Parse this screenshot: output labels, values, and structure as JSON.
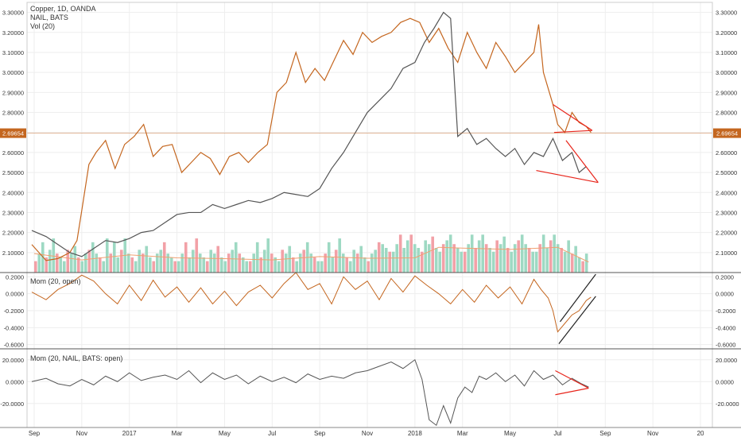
{
  "legend": {
    "symbol_line": "Copper, 1D, OANDA",
    "compare_line": "NAIL, BATS",
    "volume_line": "Vol (20)"
  },
  "colors": {
    "copper": "#c4661f",
    "nail": "#555555",
    "volume_up": "#9ed9c3",
    "volume_down": "#f2a1a7",
    "volume_ma": "#f0a070",
    "trendline": "#e8251b",
    "channel": "#222222",
    "price_label_bg": "#c4661f",
    "grid": "#eeeeee",
    "axis_text": "#333333"
  },
  "chart_data": [
    {
      "type": "line",
      "pane": "main",
      "y_axis": {
        "range": [
          2.0,
          3.35
        ],
        "ticks": [
          "3.30000",
          "3.20000",
          "3.10000",
          "3.00000",
          "2.90000",
          "2.80000",
          "2.70000",
          "2.60000",
          "2.50000",
          "2.40000",
          "2.30000",
          "2.20000",
          "2.10000"
        ],
        "tick_values": [
          3.3,
          3.2,
          3.1,
          3.0,
          2.9,
          2.8,
          2.7,
          2.6,
          2.5,
          2.4,
          2.3,
          2.2,
          2.1
        ]
      },
      "x_axis": {
        "ticks": [
          "Sep",
          "Nov",
          "2017",
          "Mar",
          "May",
          "Jul",
          "Sep",
          "Nov",
          "2018",
          "Mar",
          "May",
          "Jul",
          "Sep",
          "Nov",
          "20"
        ],
        "tick_month_index": [
          0,
          2,
          4,
          6,
          8,
          10,
          12,
          14,
          16,
          18,
          20,
          22,
          24,
          26,
          28
        ],
        "month_range": [
          -0.3,
          28.5
        ]
      },
      "current_price_label": "2.69654",
      "current_price": 2.69654,
      "series": [
        {
          "key": "copper",
          "x_month": [
            -0.1,
            0.5,
            1.0,
            1.5,
            1.8,
            2.0,
            2.3,
            2.6,
            3.0,
            3.4,
            3.8,
            4.2,
            4.6,
            5.0,
            5.4,
            5.8,
            6.2,
            6.6,
            7.0,
            7.4,
            7.8,
            8.2,
            8.6,
            9.0,
            9.4,
            9.8,
            10.2,
            10.6,
            11.0,
            11.4,
            11.8,
            12.2,
            12.6,
            13.0,
            13.4,
            13.8,
            14.2,
            14.6,
            15.0,
            15.4,
            15.8,
            16.2,
            16.6,
            17.0,
            17.4,
            17.8,
            18.2,
            18.6,
            19.0,
            19.4,
            19.8,
            20.2,
            20.6,
            21.0,
            21.2,
            21.4,
            21.6,
            21.8,
            22.0,
            22.3,
            22.6,
            22.9,
            23.2,
            23.4
          ],
          "values": [
            2.14,
            2.06,
            2.07,
            2.1,
            2.16,
            2.31,
            2.54,
            2.6,
            2.66,
            2.52,
            2.64,
            2.68,
            2.74,
            2.58,
            2.63,
            2.64,
            2.5,
            2.55,
            2.6,
            2.57,
            2.49,
            2.58,
            2.6,
            2.55,
            2.6,
            2.64,
            2.9,
            2.95,
            3.1,
            2.95,
            3.02,
            2.96,
            3.06,
            3.16,
            3.09,
            3.2,
            3.15,
            3.18,
            3.2,
            3.25,
            3.27,
            3.25,
            3.15,
            3.22,
            3.12,
            3.05,
            3.2,
            3.1,
            3.02,
            3.15,
            3.08,
            3.0,
            3.05,
            3.1,
            3.24,
            3.0,
            2.92,
            2.84,
            2.74,
            2.7,
            2.8,
            2.75,
            2.73,
            2.7
          ]
        },
        {
          "key": "nail",
          "x_month": [
            -0.1,
            0.5,
            1.0,
            1.5,
            2.0,
            2.5,
            3.0,
            3.5,
            4.0,
            4.5,
            5.0,
            5.5,
            6.0,
            6.5,
            7.0,
            7.5,
            8.0,
            8.5,
            9.0,
            9.5,
            10.0,
            10.5,
            11.0,
            11.5,
            12.0,
            12.5,
            13.0,
            13.5,
            14.0,
            14.5,
            15.0,
            15.5,
            16.0,
            16.4,
            16.8,
            17.2,
            17.5,
            17.8,
            18.2,
            18.6,
            19.0,
            19.4,
            19.8,
            20.2,
            20.6,
            21.0,
            21.4,
            21.8,
            22.2,
            22.6,
            22.9,
            23.2
          ],
          "values": [
            2.21,
            2.18,
            2.14,
            2.1,
            2.08,
            2.12,
            2.16,
            2.15,
            2.17,
            2.2,
            2.21,
            2.25,
            2.29,
            2.3,
            2.3,
            2.34,
            2.32,
            2.34,
            2.36,
            2.35,
            2.37,
            2.4,
            2.39,
            2.38,
            2.42,
            2.52,
            2.6,
            2.7,
            2.8,
            2.86,
            2.92,
            3.02,
            3.05,
            3.15,
            3.22,
            3.3,
            3.27,
            2.68,
            2.72,
            2.64,
            2.67,
            2.62,
            2.58,
            2.62,
            2.54,
            2.6,
            2.58,
            2.67,
            2.56,
            2.6,
            2.5,
            2.53
          ]
        }
      ],
      "trendlines": [
        {
          "key": "copper_triangle_upper",
          "x_month": [
            21.8,
            23.45
          ],
          "values": [
            2.84,
            2.71
          ]
        },
        {
          "key": "copper_triangle_lower",
          "x_month": [
            21.85,
            23.45
          ],
          "values": [
            2.7,
            2.71
          ]
        },
        {
          "key": "nail_triangle_upper",
          "x_month": [
            22.35,
            23.7
          ],
          "values": [
            2.66,
            2.45
          ]
        },
        {
          "key": "nail_triangle_lower",
          "x_month": [
            21.1,
            23.7
          ],
          "values": [
            2.51,
            2.45
          ]
        }
      ]
    },
    {
      "type": "bar",
      "pane": "volume",
      "series": [
        {
          "key": "volume",
          "x_month_range": [
            0.0,
            23.3
          ],
          "relative_height_pattern": [
            0.3,
            0.5,
            0.8,
            0.4,
            0.6,
            0.9,
            0.5,
            0.4,
            0.3,
            0.6,
            0.5,
            0.7,
            0.4,
            0.3,
            0.5,
            0.6,
            0.8,
            0.5,
            0.4,
            0.3
          ]
        },
        {
          "key": "volume_ma",
          "x_month": [
            0.0,
            2.0,
            4.0,
            6.0,
            8.0,
            10.0,
            12.0,
            14.0,
            16.0,
            17.0,
            18.0,
            20.0,
            22.0,
            23.3
          ],
          "relative_values": [
            0.45,
            0.3,
            0.42,
            0.35,
            0.33,
            0.3,
            0.38,
            0.34,
            0.35,
            0.6,
            0.58,
            0.55,
            0.6,
            0.25
          ]
        }
      ]
    },
    {
      "type": "line",
      "pane": "mom1",
      "title": "Mom (20, open)",
      "y_axis": {
        "range": [
          -0.65,
          0.25
        ],
        "ticks": [
          "0.2000",
          "0.0000",
          "-0.2000",
          "-0.4000",
          "-0.6000"
        ],
        "tick_values": [
          0.2,
          0.0,
          -0.2,
          -0.4,
          -0.6
        ]
      },
      "series": [
        {
          "key": "mom_copper",
          "x_month": [
            -0.1,
            0.5,
            1.0,
            1.5,
            2.0,
            2.5,
            3.0,
            3.5,
            4.0,
            4.5,
            5.0,
            5.5,
            6.0,
            6.5,
            7.0,
            7.5,
            8.0,
            8.5,
            9.0,
            9.5,
            10.0,
            10.5,
            11.0,
            11.5,
            12.0,
            12.5,
            13.0,
            13.5,
            14.0,
            14.5,
            15.0,
            15.5,
            16.0,
            16.5,
            17.0,
            17.5,
            18.0,
            18.5,
            19.0,
            19.5,
            20.0,
            20.5,
            21.0,
            21.3,
            21.6,
            21.8,
            22.0,
            22.3,
            22.6,
            22.9,
            23.2,
            23.4
          ],
          "values": [
            0.02,
            -0.07,
            0.05,
            0.12,
            0.22,
            0.15,
            0.0,
            -0.12,
            0.1,
            -0.08,
            0.16,
            -0.04,
            0.08,
            -0.1,
            0.07,
            -0.12,
            0.03,
            -0.14,
            0.02,
            0.1,
            -0.05,
            0.12,
            0.25,
            0.05,
            0.12,
            -0.12,
            0.2,
            0.05,
            0.15,
            -0.07,
            0.18,
            0.02,
            0.21,
            0.1,
            0.0,
            -0.12,
            0.05,
            -0.1,
            0.1,
            -0.05,
            0.08,
            -0.12,
            0.17,
            0.05,
            -0.05,
            -0.2,
            -0.45,
            -0.35,
            -0.25,
            -0.2,
            -0.08,
            -0.04
          ]
        }
      ],
      "trendlines": [
        {
          "key": "channel_upper",
          "x_month": [
            22.1,
            23.6
          ],
          "values": [
            -0.33,
            0.23
          ]
        },
        {
          "key": "channel_lower",
          "x_month": [
            22.05,
            23.6
          ],
          "values": [
            -0.59,
            -0.03
          ]
        }
      ]
    },
    {
      "type": "line",
      "pane": "mom2",
      "title": "Mom (20, NAIL, BATS: open)",
      "y_axis": {
        "range": [
          -42,
          30
        ],
        "ticks": [
          "20.0000",
          "0.0000",
          "-20.0000"
        ],
        "tick_values": [
          20,
          0,
          -20
        ]
      },
      "series": [
        {
          "key": "mom_nail",
          "x_month": [
            -0.1,
            0.5,
            1.0,
            1.5,
            2.0,
            2.5,
            3.0,
            3.5,
            4.0,
            4.5,
            5.0,
            5.5,
            6.0,
            6.5,
            7.0,
            7.5,
            8.0,
            8.5,
            9.0,
            9.5,
            10.0,
            10.5,
            11.0,
            11.5,
            12.0,
            12.5,
            13.0,
            13.5,
            14.0,
            14.5,
            15.0,
            15.5,
            16.0,
            16.3,
            16.6,
            16.9,
            17.2,
            17.5,
            17.8,
            18.1,
            18.4,
            18.7,
            19.0,
            19.4,
            19.8,
            20.2,
            20.6,
            21.0,
            21.4,
            21.8,
            22.2,
            22.6,
            23.0,
            23.3
          ],
          "values": [
            0,
            3,
            -2,
            -4,
            2,
            -3,
            5,
            0,
            8,
            1,
            4,
            6,
            2,
            10,
            -1,
            8,
            2,
            6,
            -2,
            5,
            0,
            4,
            -1,
            7,
            2,
            5,
            3,
            8,
            10,
            14,
            18,
            12,
            20,
            2,
            -35,
            -40,
            -22,
            -38,
            -15,
            -5,
            -10,
            5,
            2,
            8,
            0,
            6,
            -4,
            10,
            2,
            6,
            -3,
            3,
            -2,
            -5
          ]
        }
      ],
      "trendlines": [
        {
          "key": "mom2_upper",
          "x_month": [
            21.9,
            23.3
          ],
          "values": [
            10,
            -6
          ]
        },
        {
          "key": "mom2_lower",
          "x_month": [
            21.9,
            23.3
          ],
          "values": [
            -12,
            -6
          ]
        }
      ]
    }
  ]
}
